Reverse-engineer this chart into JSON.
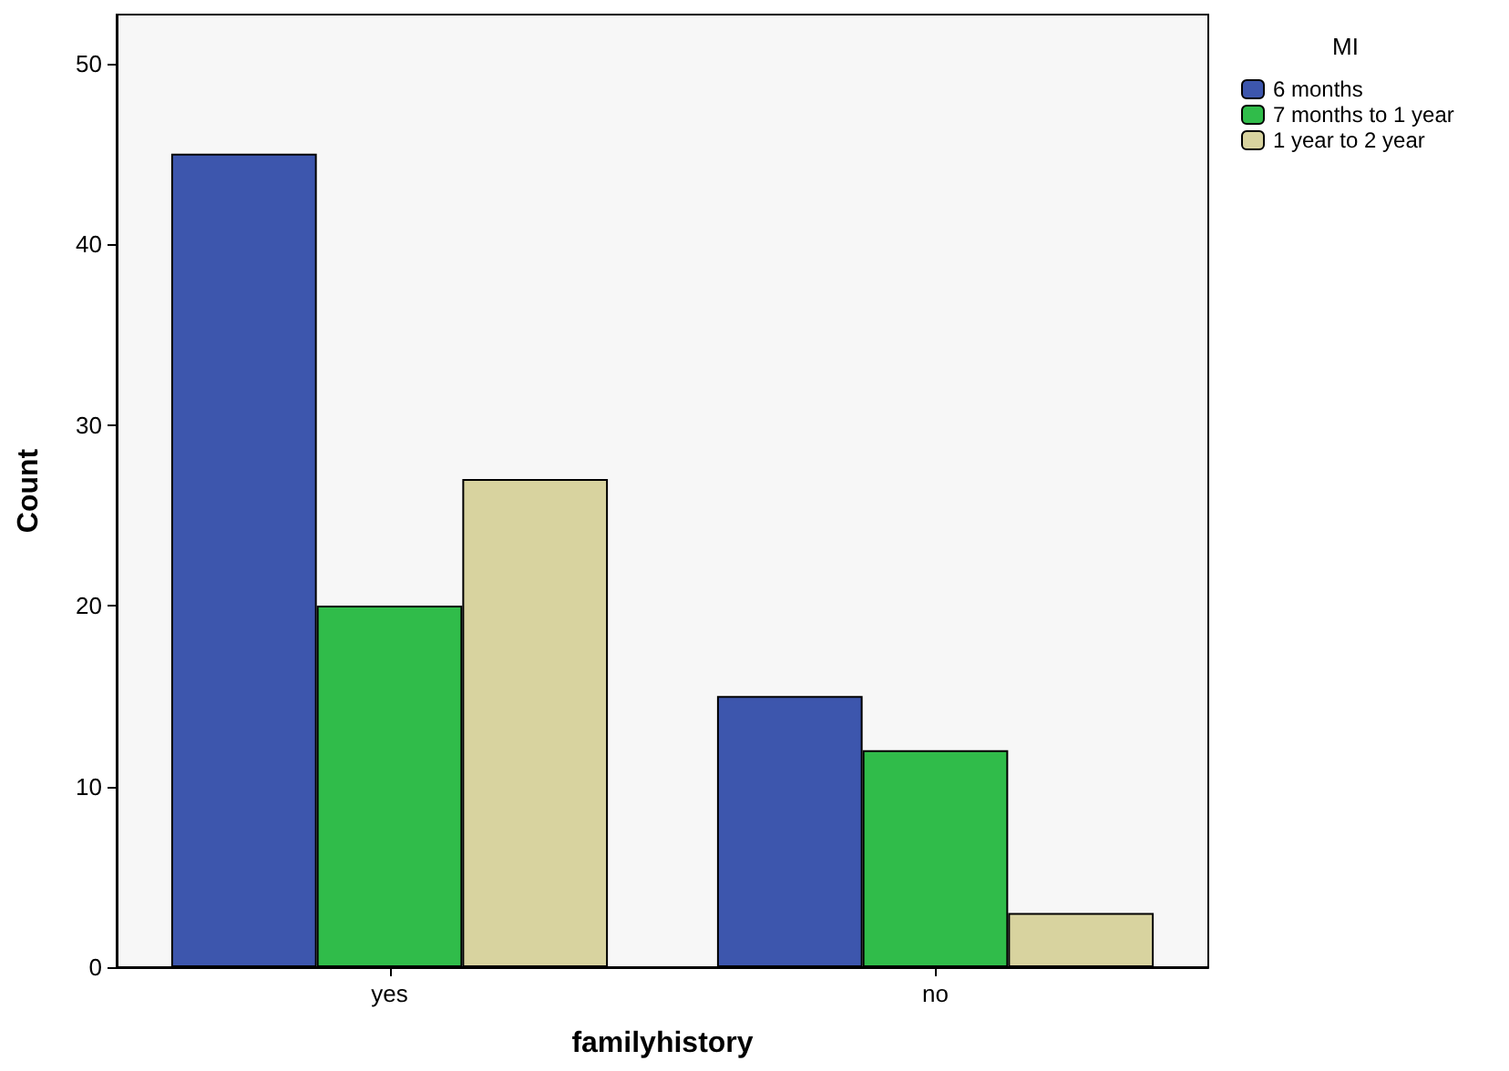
{
  "chart_data": {
    "type": "bar",
    "xlabel": "familyhistory",
    "ylabel": "Count",
    "legend_title": "MI",
    "categories": [
      "yes",
      "no"
    ],
    "series": [
      {
        "name": "6 months",
        "color": "#3d56ad",
        "values": [
          45,
          15
        ]
      },
      {
        "name": "7 months to 1 year",
        "color": "#30bc4a",
        "values": [
          20,
          12
        ]
      },
      {
        "name": "1 year to 2 year",
        "color": "#d8d39f",
        "values": [
          27,
          3
        ]
      }
    ],
    "ylim": [
      0,
      52.7
    ],
    "yticks": [
      0,
      10,
      20,
      30,
      40,
      50
    ],
    "grid": false,
    "legend": "top right"
  }
}
